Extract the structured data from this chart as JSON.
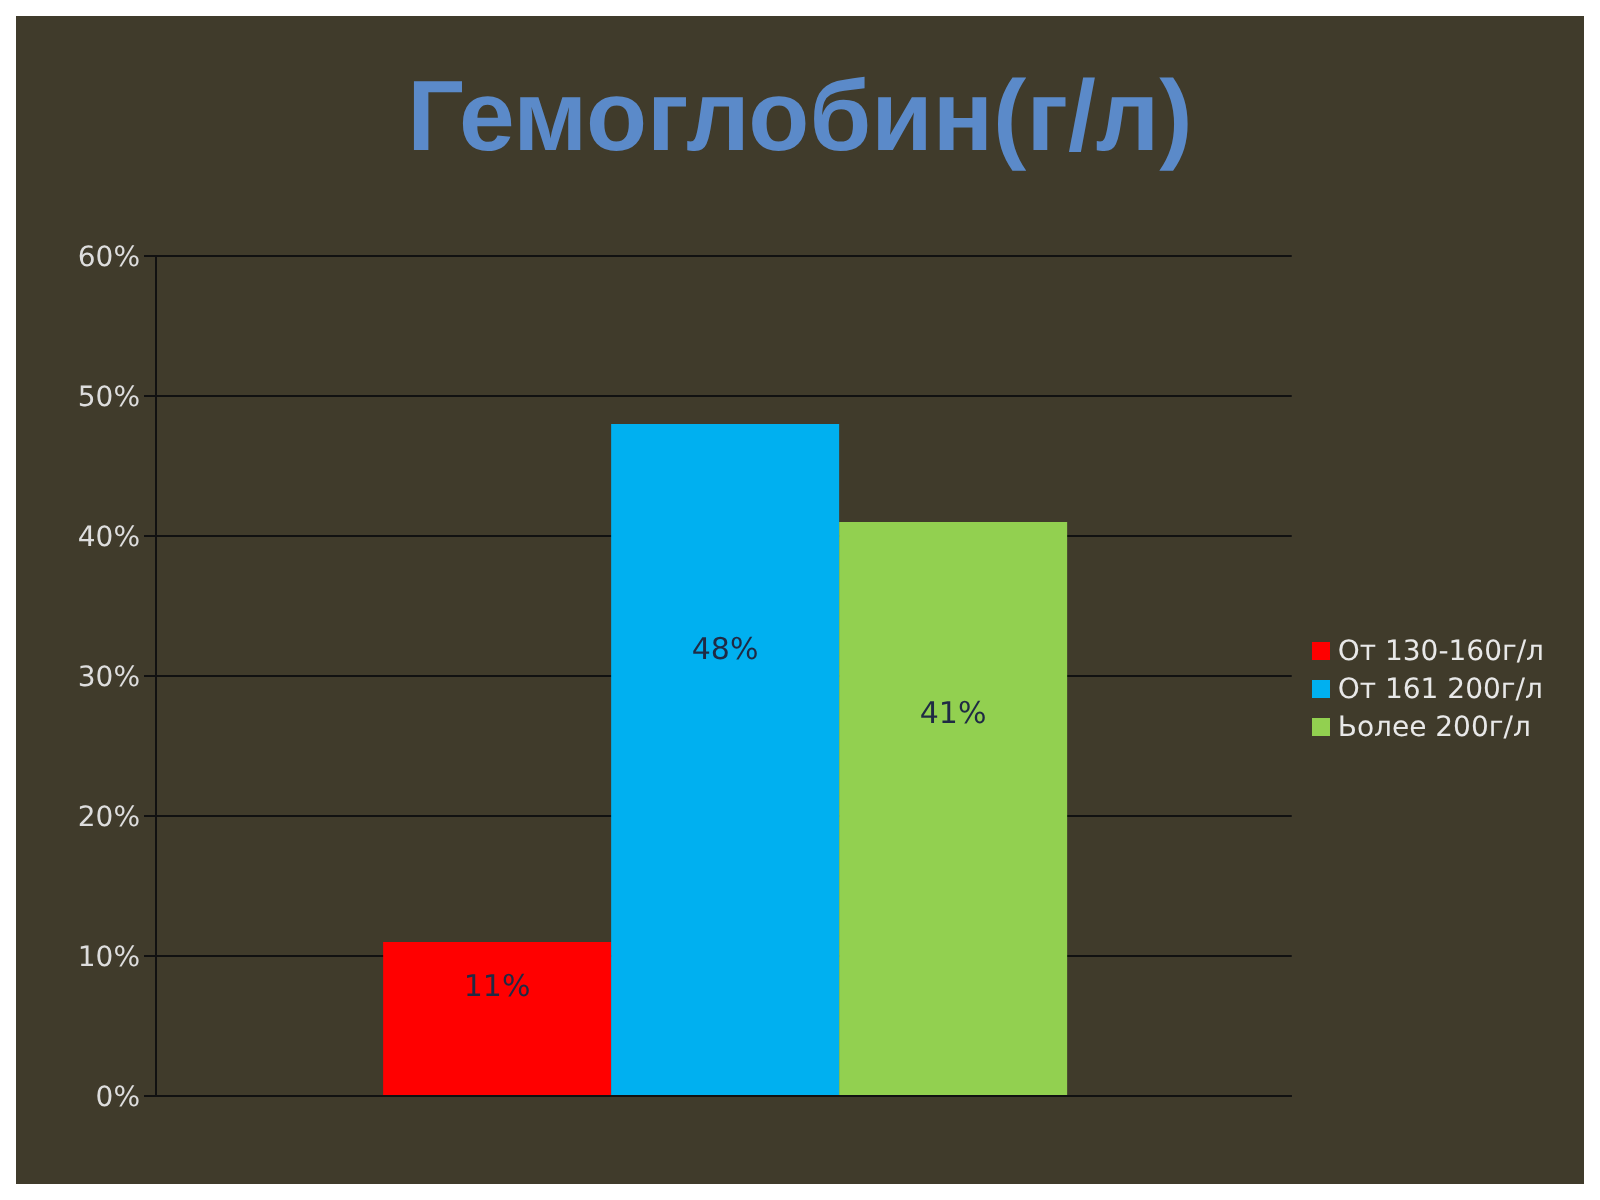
{
  "chart_data": {
    "type": "bar",
    "title": "Гемоглобин(г/л)",
    "categories": [
      null
    ],
    "series": [
      {
        "name": "От 130-160г/л",
        "color": "#ff0000",
        "values": [
          11
        ],
        "value_labels": [
          "11%"
        ]
      },
      {
        "name": "От 161 200г/л",
        "color": "#00b0f0",
        "values": [
          48
        ],
        "value_labels": [
          "48%"
        ]
      },
      {
        "name": "Ьолее 200г/л",
        "color": "#92d050",
        "values": [
          41
        ],
        "value_labels": [
          "41%"
        ]
      }
    ],
    "ylim": [
      0,
      60
    ],
    "yticks": [
      {
        "value": 0,
        "label": "0%"
      },
      {
        "value": 10,
        "label": "10%"
      },
      {
        "value": 20,
        "label": "20%"
      },
      {
        "value": 30,
        "label": "30%"
      },
      {
        "value": 40,
        "label": "40%"
      },
      {
        "value": 50,
        "label": "50%"
      },
      {
        "value": 60,
        "label": "60%"
      }
    ],
    "grid": "y",
    "legend": "right"
  }
}
